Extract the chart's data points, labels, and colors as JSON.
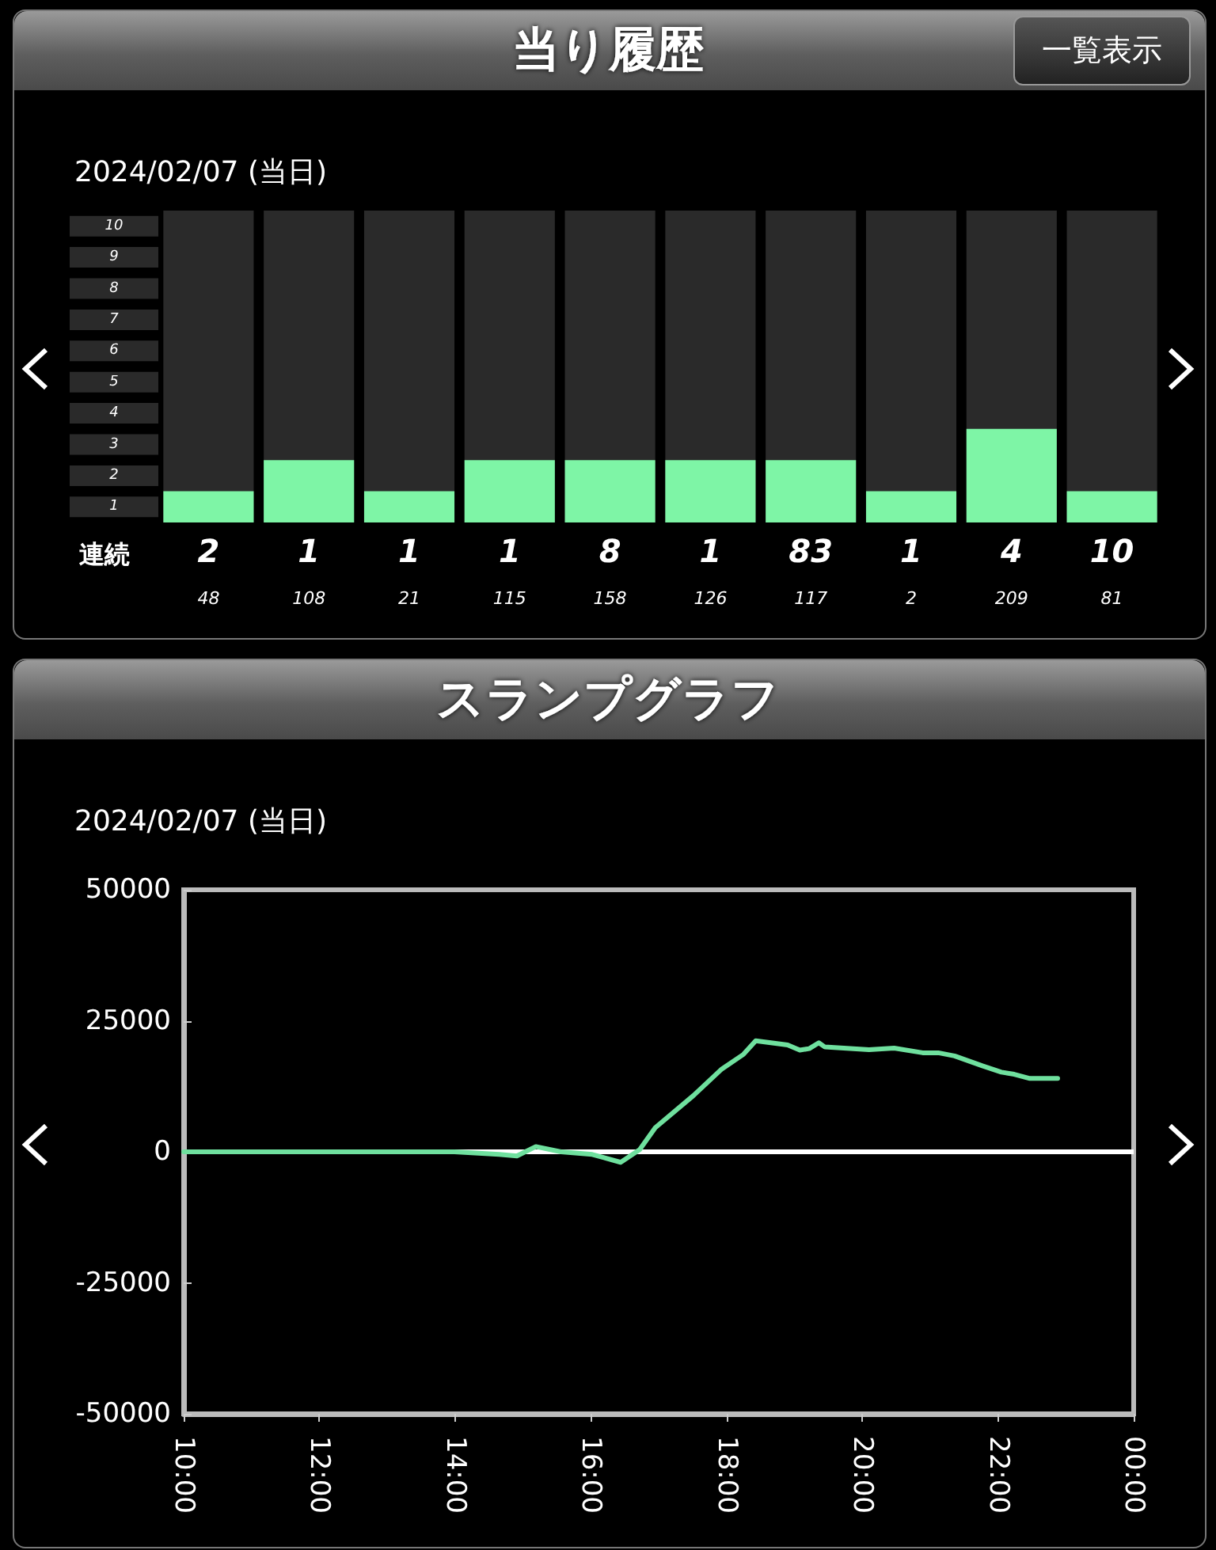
{
  "chart_data": [
    {
      "type": "bar",
      "title": "当り履歴",
      "subtitle": "2024/02/07 (当日)",
      "categories": [
        null,
        null,
        null,
        null,
        null,
        null,
        null,
        null,
        null,
        null
      ],
      "values": [
        1,
        2,
        1,
        2,
        2,
        2,
        2,
        1,
        3,
        1
      ],
      "color": "#7ef5a6",
      "ylim": [
        0,
        10
      ],
      "yticks": [
        {
          "value": 0.5,
          "label": "1"
        },
        {
          "value": 1.5,
          "label": "2"
        },
        {
          "value": 2.5,
          "label": "3"
        },
        {
          "value": 3.5,
          "label": "4"
        },
        {
          "value": 4.5,
          "label": "5"
        },
        {
          "value": 5.5,
          "label": "6"
        },
        {
          "value": 6.5,
          "label": "7"
        },
        {
          "value": 7.5,
          "label": "8"
        },
        {
          "value": 8.5,
          "label": "9"
        },
        {
          "value": 9.5,
          "label": "10"
        }
      ],
      "grid": false,
      "annotations": [
        "連続",
        "2",
        "1",
        "1",
        "1",
        "8",
        "1",
        "83",
        "1",
        "4",
        "10",
        "48",
        "108",
        "21",
        "115",
        "158",
        "126",
        "117",
        "2",
        "209",
        "81",
        "一覧表示"
      ]
    },
    {
      "type": "line",
      "title": "スランプグラフ",
      "subtitle": "2024/02/07 (当日)",
      "color": "#6fe09e",
      "x": [
        10,
        13.99,
        14.65,
        14.91,
        15.19,
        15.56,
        16.02,
        16.44,
        16.72,
        16.95,
        17.51,
        17.93,
        18.25,
        18.43,
        18.9,
        19.08,
        19.22,
        19.36,
        19.45,
        20.1,
        20.47,
        20.89,
        21.12,
        21.36,
        21.77,
        22.05,
        22.24,
        22.47,
        22.88
      ],
      "values": [
        0,
        0,
        -500,
        -800,
        1000,
        0,
        -500,
        -2000,
        400,
        4600,
        10700,
        15800,
        18600,
        21200,
        20400,
        19400,
        19700,
        20800,
        20000,
        19500,
        19800,
        18900,
        18900,
        18300,
        16400,
        15200,
        14800,
        14000,
        14000
      ],
      "xlim": [
        10,
        24
      ],
      "xticks": [
        {
          "value": 10,
          "label": "10:00"
        },
        {
          "value": 12,
          "label": "12:00"
        },
        {
          "value": 14,
          "label": "14:00"
        },
        {
          "value": 16,
          "label": "16:00"
        },
        {
          "value": 18,
          "label": "18:00"
        },
        {
          "value": 20,
          "label": "20:00"
        },
        {
          "value": 22,
          "label": "22:00"
        },
        {
          "value": 24,
          "label": "00:00"
        }
      ],
      "ylim": [
        -50000,
        50000
      ],
      "yticks": [
        -50000,
        -25000,
        0,
        25000,
        50000
      ],
      "grid": false,
      "marker": "none",
      "line_style": "solid",
      "ref_lines": [
        {
          "axis": "y",
          "value": 0,
          "color": "#ffffff"
        }
      ]
    }
  ]
}
